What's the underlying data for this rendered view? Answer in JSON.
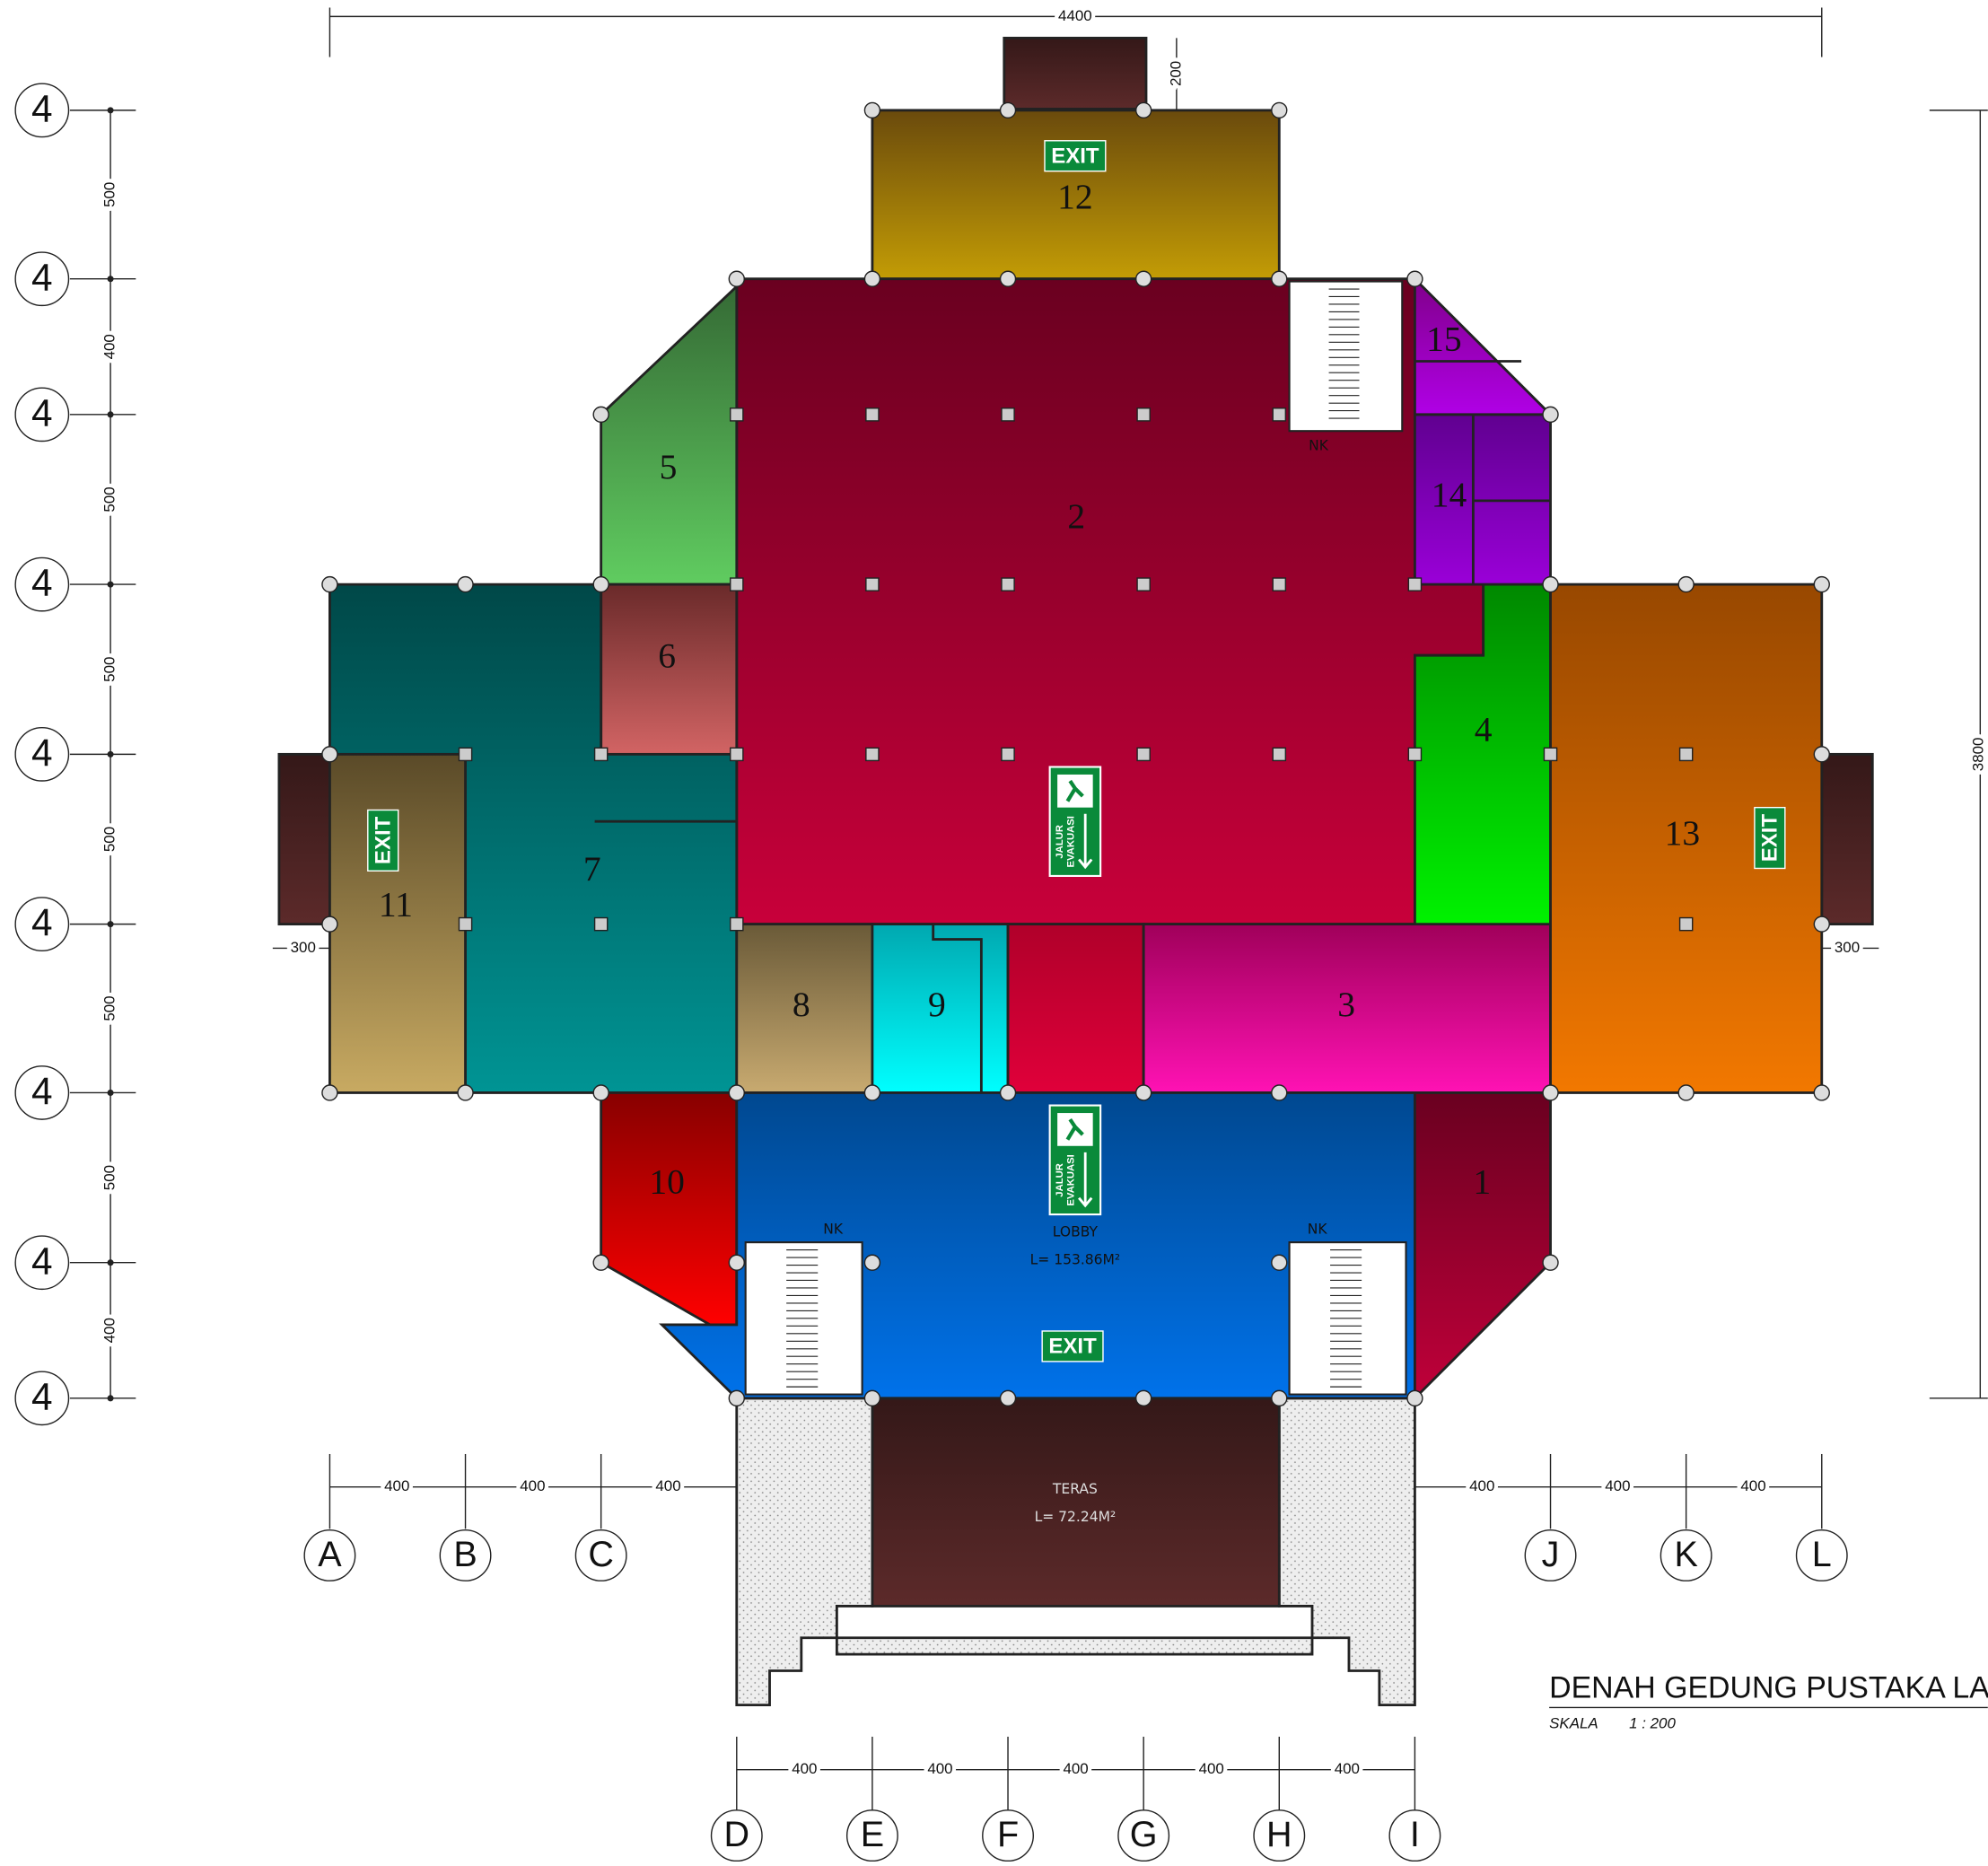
{
  "top_dimension": "4400",
  "top_small_dimension": "200",
  "right_dimension": "3800",
  "left_offset": "300",
  "right_offset": "300",
  "row_axis": {
    "labels": [
      "4",
      "4",
      "4",
      "4",
      "4",
      "4",
      "4",
      "4",
      "4"
    ],
    "spacings": [
      "500",
      "400",
      "500",
      "500",
      "500",
      "500",
      "500",
      "400"
    ]
  },
  "column_axis": {
    "upper": {
      "labels": [
        "A",
        "B",
        "C",
        "J",
        "K",
        "L"
      ],
      "spacings": [
        "400",
        "400",
        "400",
        "400",
        "400",
        "400"
      ]
    },
    "lower": {
      "labels": [
        "D",
        "E",
        "F",
        "G",
        "H",
        "I"
      ],
      "spacings": [
        "400",
        "400",
        "400",
        "400",
        "400"
      ]
    }
  },
  "rooms": [
    "1",
    "2",
    "3",
    "4",
    "5",
    "6",
    "7",
    "8",
    "9",
    "10",
    "11",
    "12",
    "13",
    "14",
    "15"
  ],
  "exit_signs": [
    "EXIT",
    "EXIT",
    "EXIT",
    "EXIT"
  ],
  "evacuation_signs": [
    {
      "line1": "JALUR",
      "line2": "EVAKUASI"
    },
    {
      "line1": "JALUR",
      "line2": "EVAKUASI"
    }
  ],
  "stair_notes": [
    "NK",
    "NK",
    "NK"
  ],
  "lobby": {
    "name": "LOBBY",
    "area": "L= 153.86M²"
  },
  "terrace": {
    "name": "TERAS",
    "area": "L= 72.24M²"
  },
  "title": "DENAH GEDUNG PUSTAKA LA",
  "scale_label": "SKALA",
  "scale_value": "1 : 200"
}
